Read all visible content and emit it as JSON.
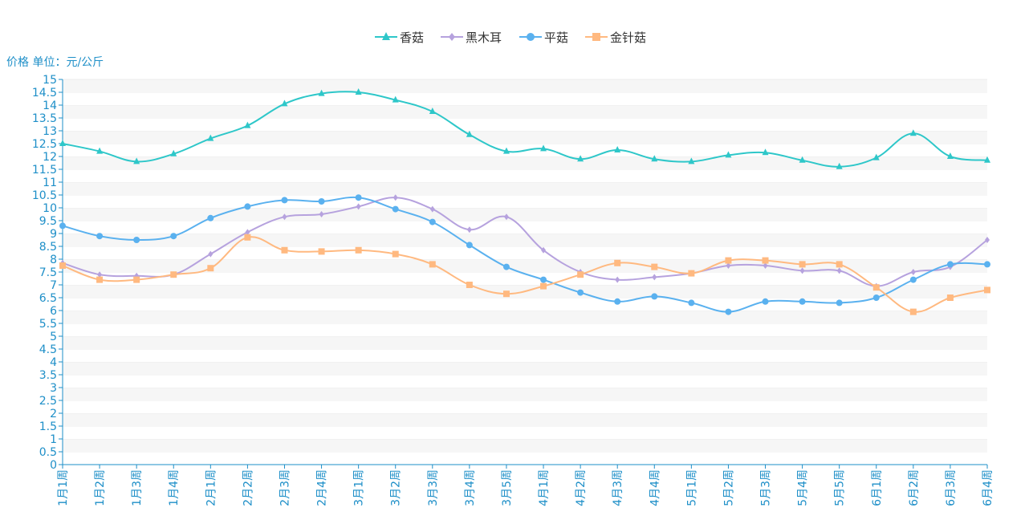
{
  "chart_data": {
    "type": "line",
    "ylabel": "价格 单位：元/公斤",
    "ylim": [
      0,
      15
    ],
    "y_tick_step": 0.5,
    "grid": true,
    "legend_position": "top-center",
    "categories": [
      "1月1周",
      "1月2周",
      "1月3周",
      "1月4周",
      "2月1周",
      "2月2周",
      "2月3周",
      "2月4周",
      "3月1周",
      "3月2周",
      "3月3周",
      "3月4周",
      "3月5周",
      "4月1周",
      "4月2周",
      "4月3周",
      "4月4周",
      "5月1周",
      "5月2周",
      "5月3周",
      "5月4周",
      "5月5周",
      "6月1周",
      "6月2周",
      "6月3周",
      "6月4周"
    ],
    "series": [
      {
        "name": "香菇",
        "color": "#2ec7c9",
        "marker": "triangle",
        "values": [
          12.5,
          12.2,
          11.8,
          12.1,
          12.7,
          13.2,
          14.05,
          14.45,
          14.5,
          14.2,
          13.75,
          12.85,
          12.2,
          12.3,
          11.9,
          12.25,
          11.9,
          11.8,
          12.05,
          12.15,
          11.85,
          11.6,
          11.95,
          12.9,
          12.0,
          11.85
        ]
      },
      {
        "name": "黑木耳",
        "color": "#b6a2de",
        "marker": "diamond",
        "values": [
          7.85,
          7.4,
          7.35,
          7.4,
          8.2,
          9.05,
          9.65,
          9.75,
          10.05,
          10.4,
          9.95,
          9.15,
          9.65,
          8.35,
          7.5,
          7.2,
          7.3,
          7.45,
          7.75,
          7.75,
          7.55,
          7.55,
          6.95,
          7.5,
          7.7,
          8.75
        ]
      },
      {
        "name": "平菇",
        "color": "#5ab1ef",
        "marker": "circle",
        "values": [
          9.3,
          8.9,
          8.75,
          8.9,
          9.6,
          10.05,
          10.3,
          10.25,
          10.4,
          9.95,
          9.45,
          8.55,
          7.7,
          7.2,
          6.7,
          6.35,
          6.55,
          6.3,
          5.95,
          6.35,
          6.35,
          6.3,
          6.5,
          7.2,
          7.8,
          7.8
        ]
      },
      {
        "name": "金针菇",
        "color": "#ffb980",
        "marker": "square",
        "values": [
          7.75,
          7.2,
          7.2,
          7.4,
          7.65,
          8.85,
          8.35,
          8.3,
          8.35,
          8.2,
          7.8,
          7.0,
          6.65,
          6.95,
          7.4,
          7.85,
          7.7,
          7.45,
          7.95,
          7.95,
          7.8,
          7.8,
          6.9,
          5.95,
          6.5,
          6.8
        ]
      }
    ]
  }
}
